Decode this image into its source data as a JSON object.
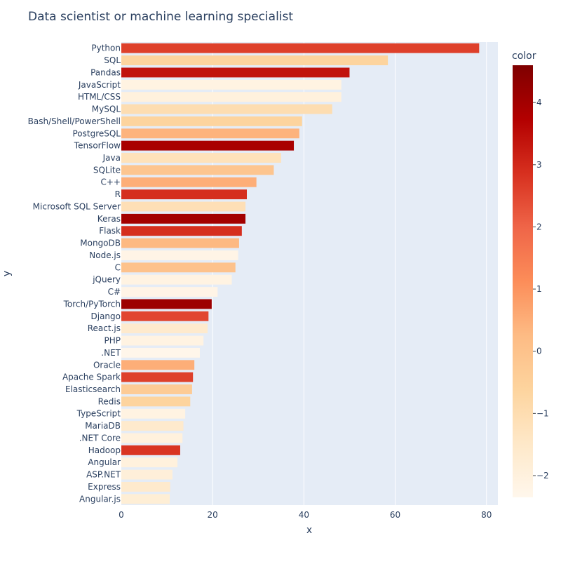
{
  "chart_data": {
    "type": "bar",
    "orientation": "horizontal",
    "title": "Data scientist or machine learning specialist",
    "xlabel": "x",
    "ylabel": "y",
    "xlim": [
      0,
      82.5
    ],
    "x_ticks": [
      0,
      20,
      40,
      60,
      80
    ],
    "grid": true,
    "colorbar": {
      "title": "color",
      "colorscale": "OrRd",
      "range": [
        -2.35,
        4.6
      ],
      "ticks": [
        -2,
        -1,
        0,
        1,
        2,
        3,
        4
      ],
      "tick_labels": [
        "−2",
        "−1",
        "0",
        "1",
        "2",
        "3",
        "4"
      ],
      "placement": "right"
    },
    "categories": [
      "Python",
      "SQL",
      "Pandas",
      "JavaScript",
      "HTML/CSS",
      "MySQL",
      "Bash/Shell/PowerShell",
      "PostgreSQL",
      "TensorFlow",
      "Java",
      "SQLite",
      "C++",
      "R",
      "Microsoft SQL Server",
      "Keras",
      "Flask",
      "MongoDB",
      "Node.js",
      "C",
      "jQuery",
      "C#",
      "Torch/PyTorch",
      "Django",
      "React.js",
      "PHP",
      ".NET",
      "Oracle",
      "Apache Spark",
      "Elasticsearch",
      "Redis",
      "TypeScript",
      "MariaDB",
      ".NET Core",
      "Hadoop",
      "Angular",
      "ASP.NET",
      "Express",
      "Angular.js"
    ],
    "values": [
      78.4,
      58.4,
      50.0,
      48.2,
      48.2,
      46.2,
      39.6,
      39.0,
      37.8,
      35.0,
      33.4,
      29.6,
      27.5,
      27.2,
      27.2,
      26.4,
      25.8,
      25.6,
      25.0,
      24.2,
      21.1,
      19.8,
      19.1,
      18.9,
      18.0,
      17.2,
      16.0,
      15.7,
      15.5,
      15.1,
      14.0,
      13.6,
      13.4,
      12.9,
      12.3,
      11.2,
      10.7,
      10.6
    ],
    "colors": [
      2.6,
      -0.6,
      3.4,
      -2.1,
      -2.0,
      -1.0,
      -0.6,
      0.4,
      3.9,
      -1.2,
      -0.1,
      0.5,
      2.9,
      -1.1,
      4.0,
      2.9,
      0.3,
      -2.2,
      0.0,
      -2.1,
      -2.2,
      4.1,
      2.5,
      -1.6,
      -2.1,
      -2.3,
      0.5,
      2.6,
      -0.3,
      -0.6,
      -2.1,
      -1.6,
      -2.0,
      2.8,
      -2.0,
      -1.9,
      -1.6,
      -1.8
    ]
  }
}
